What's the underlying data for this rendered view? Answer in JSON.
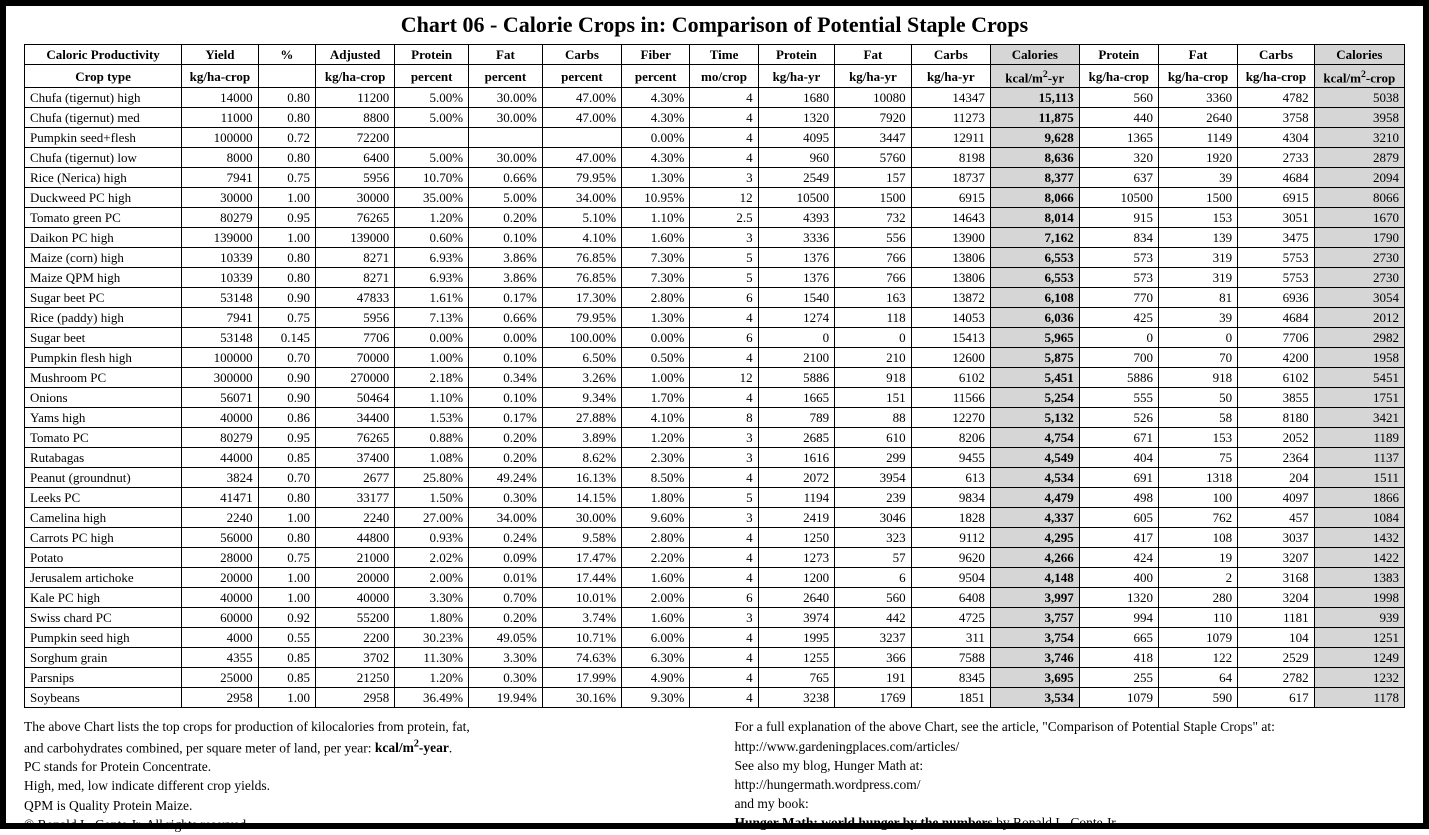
{
  "title": "Chart 06 - Calorie Crops in: Comparison of Potential Staple Crops",
  "colors": {
    "border": "#000000",
    "background": "#ffffff",
    "shaded_column_bg": "#d6d6d6",
    "text": "#000000"
  },
  "table": {
    "col_widths_pct": [
      11.5,
      5.6,
      4.2,
      5.8,
      5.4,
      5.4,
      5.8,
      5.0,
      5.0,
      5.6,
      5.6,
      5.8,
      6.5,
      5.8,
      5.8,
      5.6,
      6.6
    ],
    "shaded_col_indices": [
      12,
      16
    ],
    "bold_col_index": 12,
    "header_row1": [
      "Caloric Productivity",
      "Yield",
      "%",
      "Adjusted",
      "Protein",
      "Fat",
      "Carbs",
      "Fiber",
      "Time",
      "Protein",
      "Fat",
      "Carbs",
      "Calories",
      "Protein",
      "Fat",
      "Carbs",
      "Calories"
    ],
    "header_row2_labels": [
      "Crop type",
      "kg/ha-crop",
      "",
      "kg/ha-crop",
      "percent",
      "percent",
      "percent",
      "percent",
      "mo/crop",
      "kg/ha-yr",
      "kg/ha-yr",
      "kg/ha-yr",
      "kcal/m",
      "kg/ha-crop",
      "kg/ha-crop",
      "kg/ha-crop",
      "kcal/m"
    ],
    "header_row2_sup": [
      "",
      "",
      "",
      "",
      "",
      "",
      "",
      "",
      "",
      "",
      "",
      "",
      "2",
      "",
      "",
      "",
      "2"
    ],
    "header_row2_suffix": [
      "",
      "",
      "",
      "",
      "",
      "",
      "",
      "",
      "",
      "",
      "",
      "",
      "-yr",
      "",
      "",
      "",
      "-crop"
    ],
    "rows": [
      [
        "Chufa (tigernut) high",
        "14000",
        "0.80",
        "11200",
        "5.00%",
        "30.00%",
        "47.00%",
        "4.30%",
        "4",
        "1680",
        "10080",
        "14347",
        "15,113",
        "560",
        "3360",
        "4782",
        "5038"
      ],
      [
        "Chufa (tigernut) med",
        "11000",
        "0.80",
        "8800",
        "5.00%",
        "30.00%",
        "47.00%",
        "4.30%",
        "4",
        "1320",
        "7920",
        "11273",
        "11,875",
        "440",
        "2640",
        "3758",
        "3958"
      ],
      [
        "Pumpkin seed+flesh",
        "100000",
        "0.72",
        "72200",
        "",
        "",
        "",
        "0.00%",
        "4",
        "4095",
        "3447",
        "12911",
        "9,628",
        "1365",
        "1149",
        "4304",
        "3210"
      ],
      [
        "Chufa (tigernut) low",
        "8000",
        "0.80",
        "6400",
        "5.00%",
        "30.00%",
        "47.00%",
        "4.30%",
        "4",
        "960",
        "5760",
        "8198",
        "8,636",
        "320",
        "1920",
        "2733",
        "2879"
      ],
      [
        "Rice (Nerica) high",
        "7941",
        "0.75",
        "5956",
        "10.70%",
        "0.66%",
        "79.95%",
        "1.30%",
        "3",
        "2549",
        "157",
        "18737",
        "8,377",
        "637",
        "39",
        "4684",
        "2094"
      ],
      [
        "Duckweed PC high",
        "30000",
        "1.00",
        "30000",
        "35.00%",
        "5.00%",
        "34.00%",
        "10.95%",
        "12",
        "10500",
        "1500",
        "6915",
        "8,066",
        "10500",
        "1500",
        "6915",
        "8066"
      ],
      [
        "Tomato green PC",
        "80279",
        "0.95",
        "76265",
        "1.20%",
        "0.20%",
        "5.10%",
        "1.10%",
        "2.5",
        "4393",
        "732",
        "14643",
        "8,014",
        "915",
        "153",
        "3051",
        "1670"
      ],
      [
        "Daikon PC high",
        "139000",
        "1.00",
        "139000",
        "0.60%",
        "0.10%",
        "4.10%",
        "1.60%",
        "3",
        "3336",
        "556",
        "13900",
        "7,162",
        "834",
        "139",
        "3475",
        "1790"
      ],
      [
        "Maize (corn) high",
        "10339",
        "0.80",
        "8271",
        "6.93%",
        "3.86%",
        "76.85%",
        "7.30%",
        "5",
        "1376",
        "766",
        "13806",
        "6,553",
        "573",
        "319",
        "5753",
        "2730"
      ],
      [
        "Maize QPM high",
        "10339",
        "0.80",
        "8271",
        "6.93%",
        "3.86%",
        "76.85%",
        "7.30%",
        "5",
        "1376",
        "766",
        "13806",
        "6,553",
        "573",
        "319",
        "5753",
        "2730"
      ],
      [
        "Sugar beet PC",
        "53148",
        "0.90",
        "47833",
        "1.61%",
        "0.17%",
        "17.30%",
        "2.80%",
        "6",
        "1540",
        "163",
        "13872",
        "6,108",
        "770",
        "81",
        "6936",
        "3054"
      ],
      [
        "Rice (paddy) high",
        "7941",
        "0.75",
        "5956",
        "7.13%",
        "0.66%",
        "79.95%",
        "1.30%",
        "4",
        "1274",
        "118",
        "14053",
        "6,036",
        "425",
        "39",
        "4684",
        "2012"
      ],
      [
        "Sugar beet",
        "53148",
        "0.145",
        "7706",
        "0.00%",
        "0.00%",
        "100.00%",
        "0.00%",
        "6",
        "0",
        "0",
        "15413",
        "5,965",
        "0",
        "0",
        "7706",
        "2982"
      ],
      [
        "Pumpkin flesh high",
        "100000",
        "0.70",
        "70000",
        "1.00%",
        "0.10%",
        "6.50%",
        "0.50%",
        "4",
        "2100",
        "210",
        "12600",
        "5,875",
        "700",
        "70",
        "4200",
        "1958"
      ],
      [
        "Mushroom PC",
        "300000",
        "0.90",
        "270000",
        "2.18%",
        "0.34%",
        "3.26%",
        "1.00%",
        "12",
        "5886",
        "918",
        "6102",
        "5,451",
        "5886",
        "918",
        "6102",
        "5451"
      ],
      [
        "Onions",
        "56071",
        "0.90",
        "50464",
        "1.10%",
        "0.10%",
        "9.34%",
        "1.70%",
        "4",
        "1665",
        "151",
        "11566",
        "5,254",
        "555",
        "50",
        "3855",
        "1751"
      ],
      [
        "Yams high",
        "40000",
        "0.86",
        "34400",
        "1.53%",
        "0.17%",
        "27.88%",
        "4.10%",
        "8",
        "789",
        "88",
        "12270",
        "5,132",
        "526",
        "58",
        "8180",
        "3421"
      ],
      [
        "Tomato PC",
        "80279",
        "0.95",
        "76265",
        "0.88%",
        "0.20%",
        "3.89%",
        "1.20%",
        "3",
        "2685",
        "610",
        "8206",
        "4,754",
        "671",
        "153",
        "2052",
        "1189"
      ],
      [
        "Rutabagas",
        "44000",
        "0.85",
        "37400",
        "1.08%",
        "0.20%",
        "8.62%",
        "2.30%",
        "3",
        "1616",
        "299",
        "9455",
        "4,549",
        "404",
        "75",
        "2364",
        "1137"
      ],
      [
        "Peanut (groundnut)",
        "3824",
        "0.70",
        "2677",
        "25.80%",
        "49.24%",
        "16.13%",
        "8.50%",
        "4",
        "2072",
        "3954",
        "613",
        "4,534",
        "691",
        "1318",
        "204",
        "1511"
      ],
      [
        "Leeks PC",
        "41471",
        "0.80",
        "33177",
        "1.50%",
        "0.30%",
        "14.15%",
        "1.80%",
        "5",
        "1194",
        "239",
        "9834",
        "4,479",
        "498",
        "100",
        "4097",
        "1866"
      ],
      [
        "Camelina high",
        "2240",
        "1.00",
        "2240",
        "27.00%",
        "34.00%",
        "30.00%",
        "9.60%",
        "3",
        "2419",
        "3046",
        "1828",
        "4,337",
        "605",
        "762",
        "457",
        "1084"
      ],
      [
        "Carrots PC high",
        "56000",
        "0.80",
        "44800",
        "0.93%",
        "0.24%",
        "9.58%",
        "2.80%",
        "4",
        "1250",
        "323",
        "9112",
        "4,295",
        "417",
        "108",
        "3037",
        "1432"
      ],
      [
        "Potato",
        "28000",
        "0.75",
        "21000",
        "2.02%",
        "0.09%",
        "17.47%",
        "2.20%",
        "4",
        "1273",
        "57",
        "9620",
        "4,266",
        "424",
        "19",
        "3207",
        "1422"
      ],
      [
        "Jerusalem artichoke",
        "20000",
        "1.00",
        "20000",
        "2.00%",
        "0.01%",
        "17.44%",
        "1.60%",
        "4",
        "1200",
        "6",
        "9504",
        "4,148",
        "400",
        "2",
        "3168",
        "1383"
      ],
      [
        "Kale PC high",
        "40000",
        "1.00",
        "40000",
        "3.30%",
        "0.70%",
        "10.01%",
        "2.00%",
        "6",
        "2640",
        "560",
        "6408",
        "3,997",
        "1320",
        "280",
        "3204",
        "1998"
      ],
      [
        "Swiss chard PC",
        "60000",
        "0.92",
        "55200",
        "1.80%",
        "0.20%",
        "3.74%",
        "1.60%",
        "3",
        "3974",
        "442",
        "4725",
        "3,757",
        "994",
        "110",
        "1181",
        "939"
      ],
      [
        "Pumpkin seed high",
        "4000",
        "0.55",
        "2200",
        "30.23%",
        "49.05%",
        "10.71%",
        "6.00%",
        "4",
        "1995",
        "3237",
        "311",
        "3,754",
        "665",
        "1079",
        "104",
        "1251"
      ],
      [
        "Sorghum grain",
        "4355",
        "0.85",
        "3702",
        "11.30%",
        "3.30%",
        "74.63%",
        "6.30%",
        "4",
        "1255",
        "366",
        "7588",
        "3,746",
        "418",
        "122",
        "2529",
        "1249"
      ],
      [
        "Parsnips",
        "25000",
        "0.85",
        "21250",
        "1.20%",
        "0.30%",
        "17.99%",
        "4.90%",
        "4",
        "765",
        "191",
        "8345",
        "3,695",
        "255",
        "64",
        "2782",
        "1232"
      ],
      [
        "Soybeans",
        "2958",
        "1.00",
        "2958",
        "36.49%",
        "19.94%",
        "30.16%",
        "9.30%",
        "4",
        "3238",
        "1769",
        "1851",
        "3,534",
        "1079",
        "590",
        "617",
        "1178"
      ]
    ]
  },
  "footer": {
    "left": [
      {
        "pre": "The above Chart lists the top crops for production of kilocalories from protein, fat,",
        "bold": "",
        "post": ""
      },
      {
        "pre": "and carbohydrates combined, per square meter of land, per year: ",
        "bold": "kcal/m",
        "sup": "2",
        "bold2": "-year",
        "post": "."
      },
      {
        "pre": "PC stands for Protein Concentrate.",
        "bold": "",
        "post": ""
      },
      {
        "pre": "High, med, low indicate different crop yields.",
        "bold": "",
        "post": ""
      },
      {
        "pre": "QPM is Quality Protein Maize.",
        "bold": "",
        "post": ""
      },
      {
        "pre": "© Ronald L. Conte Jr. All rights reserved.",
        "bold": "",
        "post": ""
      }
    ],
    "right": [
      {
        "pre": "For a full explanation of the above Chart, see the article, \"Comparison of Potential Staple Crops\" at:",
        "bold": "",
        "post": ""
      },
      {
        "pre": "http://www.gardeningplaces.com/articles/",
        "bold": "",
        "post": ""
      },
      {
        "pre": "See also my blog, Hunger Math at:",
        "bold": "",
        "post": ""
      },
      {
        "pre": "http://hungermath.wordpress.com/",
        "bold": "",
        "post": ""
      },
      {
        "pre": "and my book:",
        "bold": "",
        "post": ""
      },
      {
        "pre": "",
        "bold": "Hunger Math: world hunger by the numbers",
        "post": " by Ronald L. Conte Jr."
      }
    ]
  }
}
